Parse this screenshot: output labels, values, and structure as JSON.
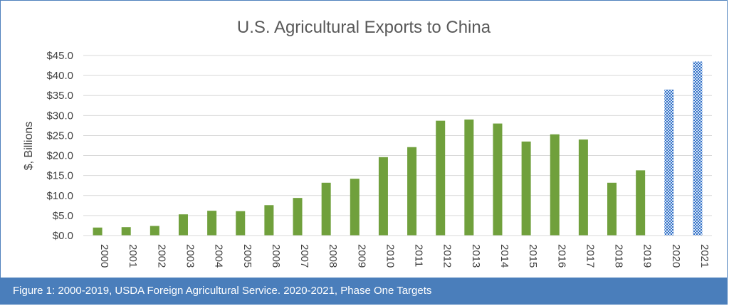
{
  "chart_data": {
    "type": "bar",
    "title": "U.S. Agricultural Exports to China",
    "ylabel": "$, Billions",
    "xlabel": "",
    "ylim": [
      0,
      45
    ],
    "yticks": [
      0,
      5,
      10,
      15,
      20,
      25,
      30,
      35,
      40,
      45
    ],
    "ytick_labels": [
      "$0.0",
      "$5.0",
      "$10.0",
      "$15.0",
      "$20.0",
      "$25.0",
      "$30.0",
      "$35.0",
      "$40.0",
      "$45.0"
    ],
    "grid": true,
    "legend": "none",
    "categories": [
      "2000",
      "2001",
      "2002",
      "2003",
      "2004",
      "2005",
      "2006",
      "2007",
      "2008",
      "2009",
      "2010",
      "2011",
      "2012",
      "2013",
      "2014",
      "2015",
      "2016",
      "2017",
      "2018",
      "2019",
      "2020",
      "2021"
    ],
    "values": [
      2.0,
      2.1,
      2.4,
      5.3,
      6.2,
      6.1,
      7.6,
      9.4,
      13.2,
      14.2,
      19.6,
      22.1,
      28.7,
      29.0,
      28.0,
      23.5,
      25.3,
      24.0,
      13.2,
      16.3,
      36.5,
      43.5
    ],
    "bar_styles": [
      "actual",
      "actual",
      "actual",
      "actual",
      "actual",
      "actual",
      "actual",
      "actual",
      "actual",
      "actual",
      "actual",
      "actual",
      "actual",
      "actual",
      "actual",
      "actual",
      "actual",
      "actual",
      "actual",
      "actual",
      "target",
      "target"
    ],
    "colors": {
      "actual": "#70a03c",
      "target": "#2e6fc7",
      "grid": "#d9d9d9",
      "text": "#404040",
      "title": "#595959"
    }
  },
  "caption": "Figure 1: 2000-2019, USDA Foreign Agricultural Service. 2020-2021, Phase One Targets",
  "colors": {
    "caption_bg": "#4a7ebb",
    "frame_border": "#4f81bd"
  }
}
